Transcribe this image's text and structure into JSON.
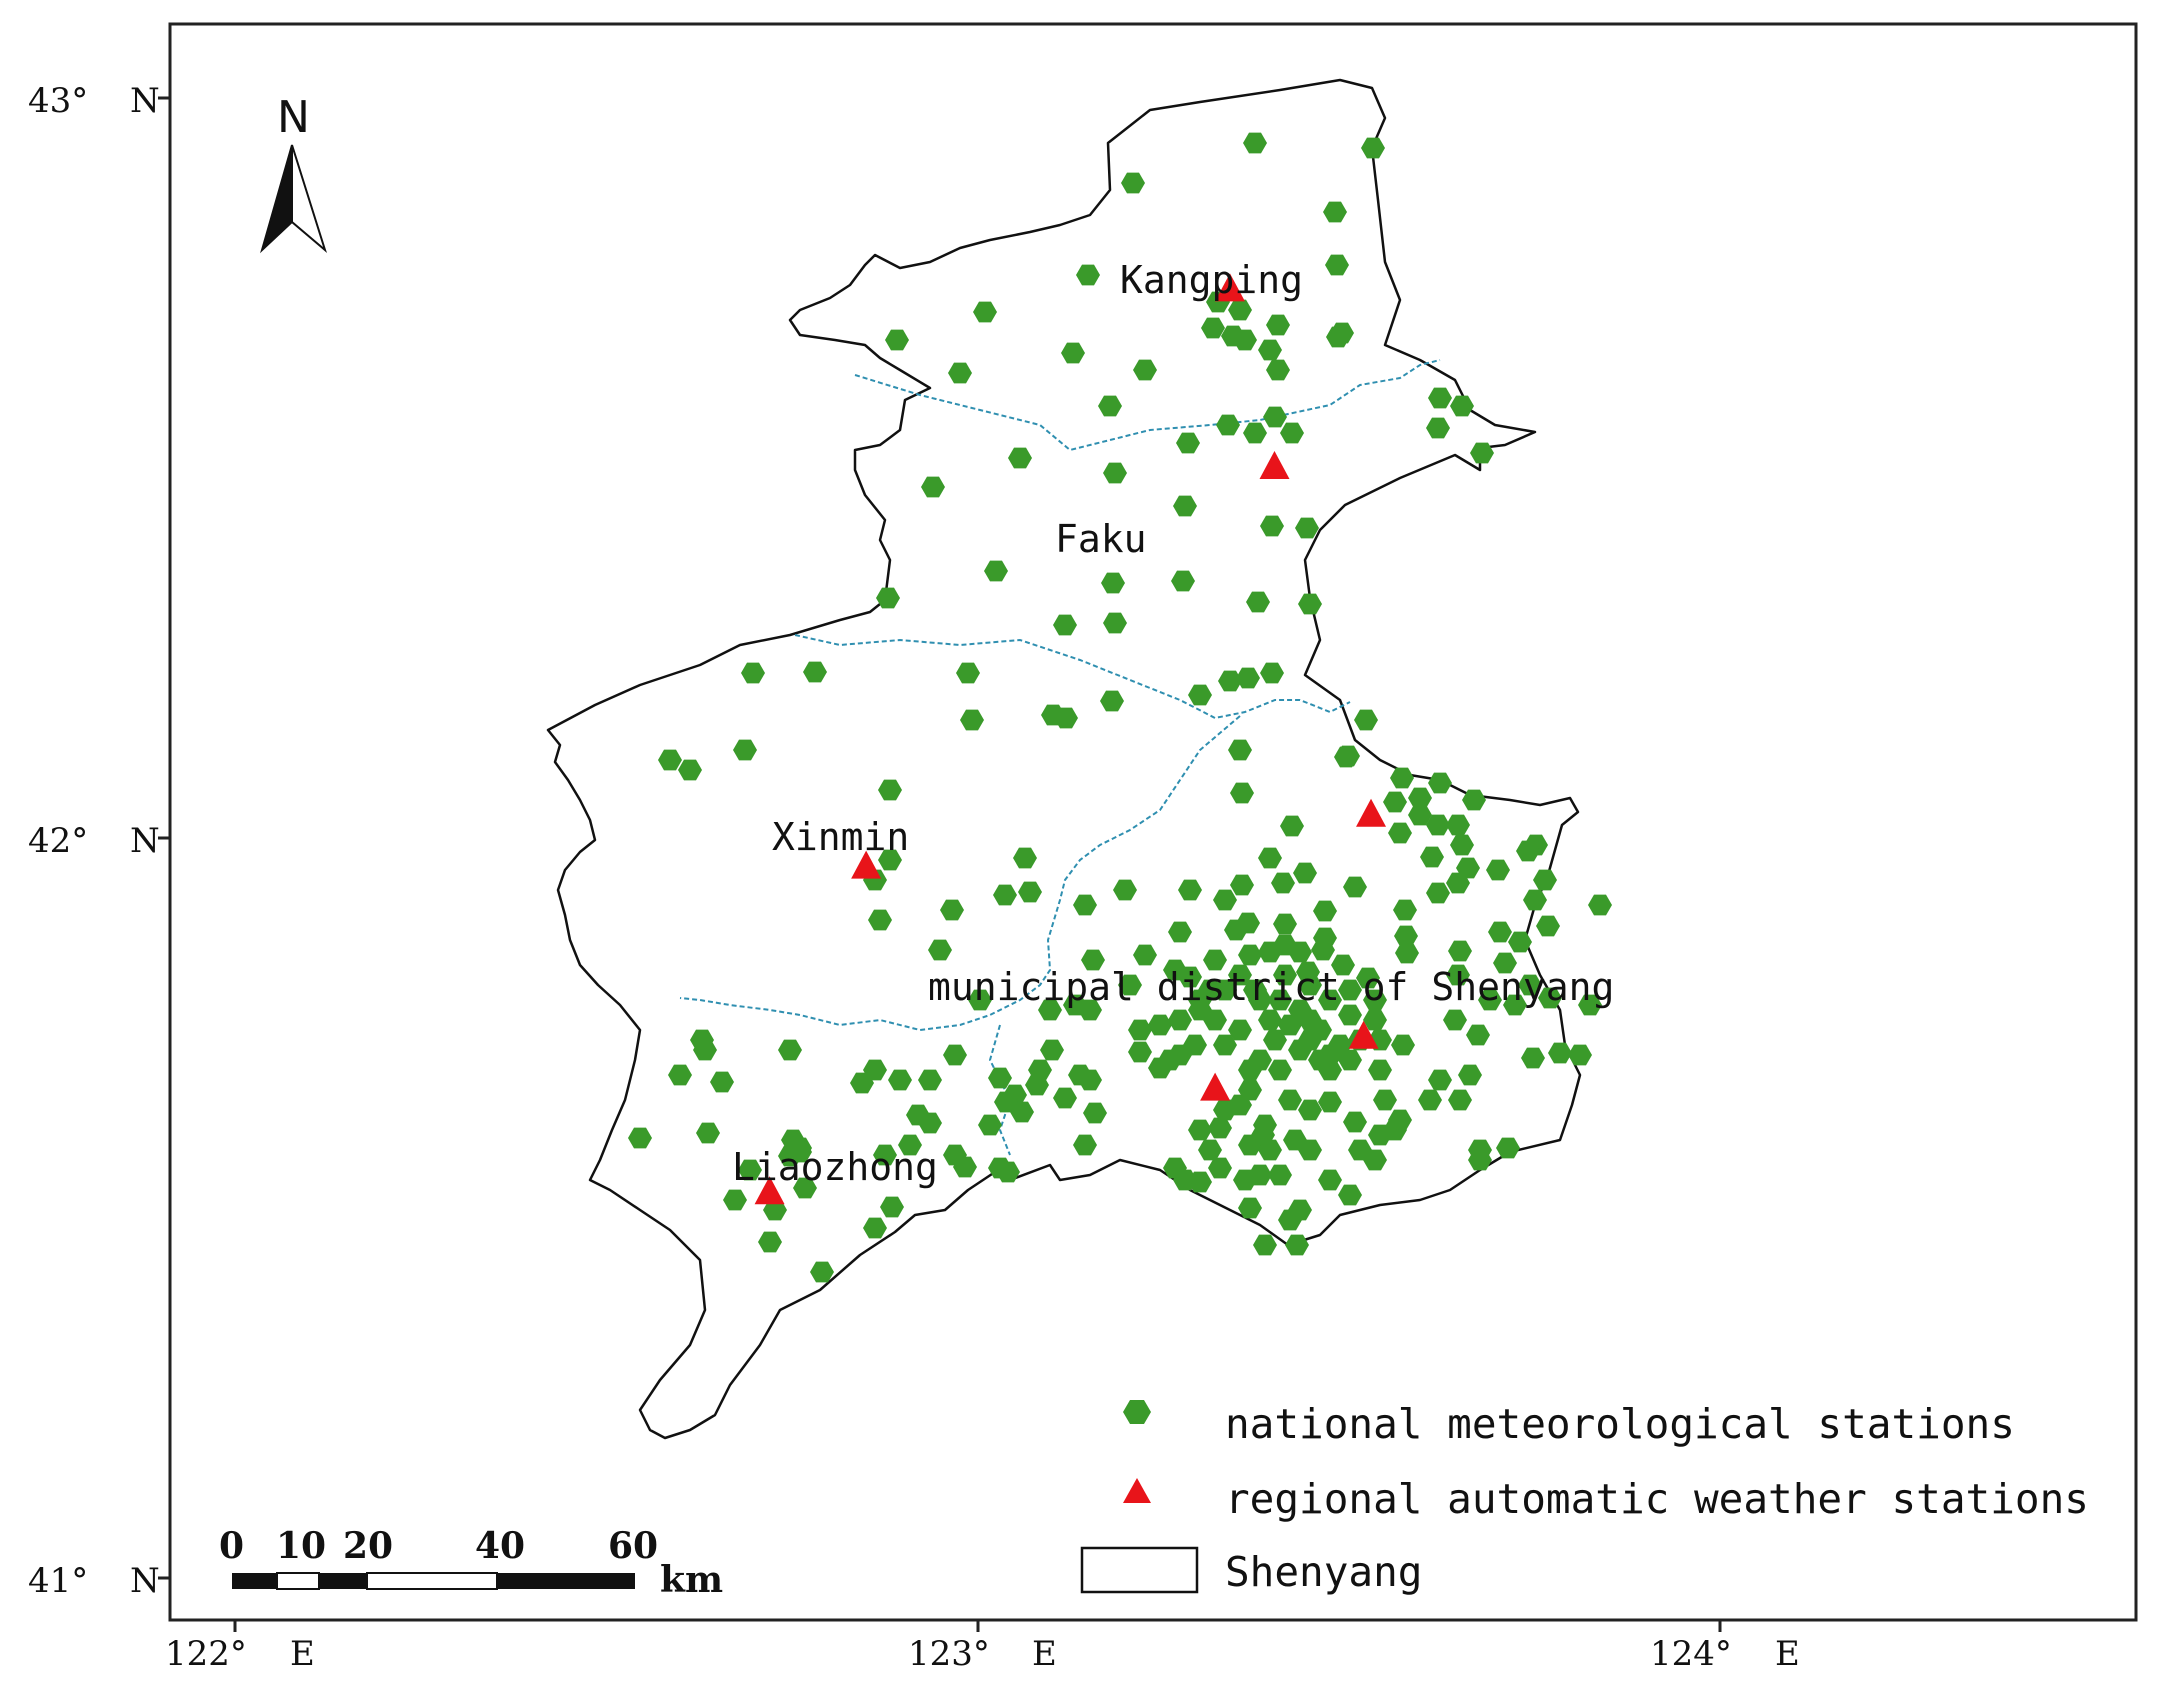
{
  "north_arrow": {
    "label": "N"
  },
  "lat_labels": [
    {
      "deg": "43°",
      "hem": "N"
    },
    {
      "deg": "42°",
      "hem": "N"
    },
    {
      "deg": "41°",
      "hem": "N"
    }
  ],
  "lon_labels": [
    {
      "deg": "122°",
      "hem": "E"
    },
    {
      "deg": "123°",
      "hem": "E"
    },
    {
      "deg": "124°",
      "hem": "E"
    }
  ],
  "places": {
    "kangping": "Kangping",
    "faku": "Faku",
    "xinmin": "Xinmin",
    "municipal": "municipal district of Shenyang",
    "liaozhong": "Liaozhong"
  },
  "scale_bar": {
    "ticks": [
      "0",
      "10",
      "20",
      "40",
      "60"
    ],
    "unit": "km"
  },
  "legend": {
    "national": "national meteorological stations",
    "regional": "regional automatic weather stations",
    "boundary": "Shenyang"
  },
  "colors": {
    "national_station": "#3a9a2a",
    "regional_station": "#e8141a",
    "river": "#2f8fb0",
    "boundary": "#111111"
  },
  "regional_stations": [
    {
      "lon": 123.4,
      "lat": 42.5
    },
    {
      "lon": 123.53,
      "lat": 42.03
    },
    {
      "lon": 122.85,
      "lat": 41.96
    },
    {
      "lon": 123.52,
      "lat": 41.73
    },
    {
      "lon": 123.32,
      "lat": 41.66
    },
    {
      "lon": 122.72,
      "lat": 41.52
    },
    {
      "lon": 123.34,
      "lat": 42.74
    }
  ]
}
